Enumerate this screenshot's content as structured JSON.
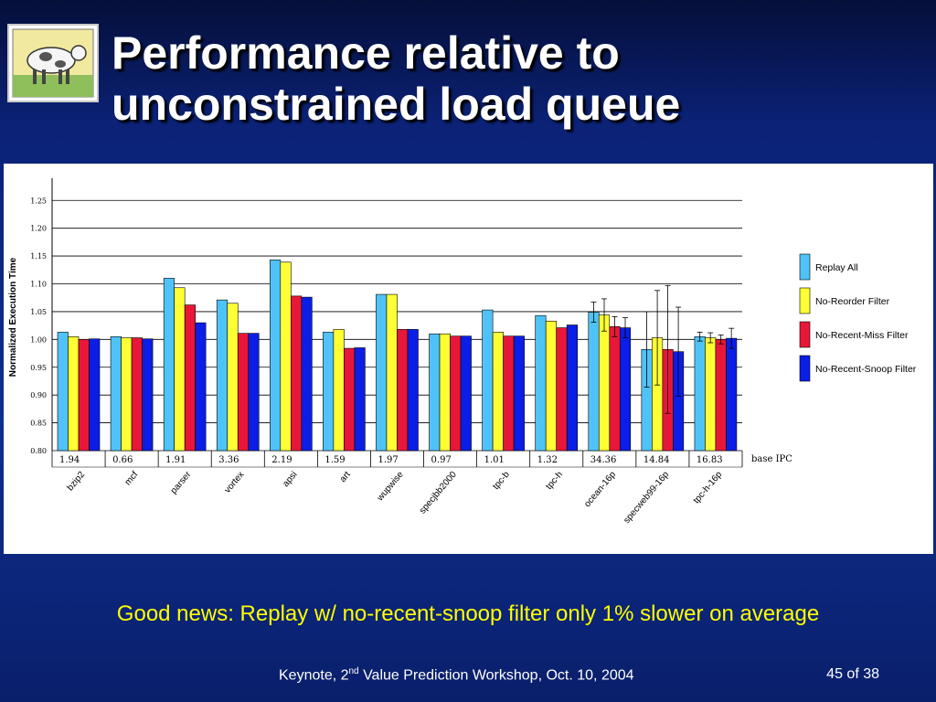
{
  "slide": {
    "title_line1": "Performance relative to",
    "title_line2": "unconstrained load queue",
    "caption": "Good news: Replay w/ no-recent-snoop filter only 1% slower on average",
    "footer_prefix": "Keynote, 2",
    "footer_sup": "nd",
    "footer_suffix": " Value Prediction Workshop, Oct. 10, 2004",
    "page": "45 of 38"
  },
  "chart_data": {
    "type": "bar",
    "title": "",
    "xlabel": "",
    "ylabel": "Normalized Execution Time",
    "ylim": [
      0.8,
      1.28
    ],
    "yticks": [
      "0.80",
      "0.85",
      "0.90",
      "0.95",
      "1.00",
      "1.05",
      "1.10",
      "1.15",
      "1.20",
      "1.25"
    ],
    "grid": true,
    "legend_position": "right",
    "categories": [
      "bzip2",
      "mcf",
      "parser",
      "vortex",
      "apsi",
      "art",
      "wupwise",
      "specjbb2000",
      "tpc-b",
      "tpc-h",
      "ocean-16p",
      "specweb99-16p",
      "tpc-h-16p"
    ],
    "base_ipc_label": "base IPC",
    "base_ipc": [
      "1.94",
      "0.66",
      "1.91",
      "3.36",
      "2.19",
      "1.59",
      "1.97",
      "0.97",
      "1.01",
      "1.32",
      "34.36",
      "14.84",
      "16.83"
    ],
    "series": [
      {
        "name": "Replay All",
        "color": "#4fc3f7",
        "values": [
          1.013,
          1.005,
          1.11,
          1.071,
          1.143,
          1.013,
          1.081,
          1.01,
          1.053,
          1.043,
          1.049,
          0.982,
          1.005
        ],
        "errors": [
          null,
          null,
          null,
          null,
          null,
          null,
          null,
          null,
          null,
          null,
          0.018,
          0.068,
          0.008
        ]
      },
      {
        "name": "No-Reorder Filter",
        "color": "#ffff33",
        "values": [
          1.005,
          1.003,
          1.093,
          1.065,
          1.139,
          1.018,
          1.081,
          1.01,
          1.013,
          1.033,
          1.044,
          1.003,
          1.003
        ],
        "errors": [
          null,
          null,
          null,
          null,
          null,
          null,
          null,
          null,
          null,
          null,
          0.029,
          0.085,
          0.009
        ]
      },
      {
        "name": "No-Recent-Miss Filter",
        "color": "#e8173a",
        "values": [
          1.0,
          1.003,
          1.062,
          1.011,
          1.078,
          0.984,
          1.018,
          1.006,
          1.006,
          1.021,
          1.023,
          0.982,
          1.0
        ],
        "errors": [
          null,
          null,
          null,
          null,
          null,
          null,
          null,
          null,
          null,
          null,
          0.018,
          0.115,
          0.008
        ]
      },
      {
        "name": "No-Recent-Snoop Filter",
        "color": "#0a1ee6",
        "values": [
          1.001,
          1.001,
          1.03,
          1.011,
          1.076,
          0.985,
          1.018,
          1.006,
          1.006,
          1.026,
          1.021,
          0.978,
          1.002
        ],
        "errors": [
          null,
          null,
          null,
          null,
          null,
          null,
          null,
          null,
          null,
          null,
          0.018,
          0.08,
          0.018
        ]
      }
    ]
  }
}
